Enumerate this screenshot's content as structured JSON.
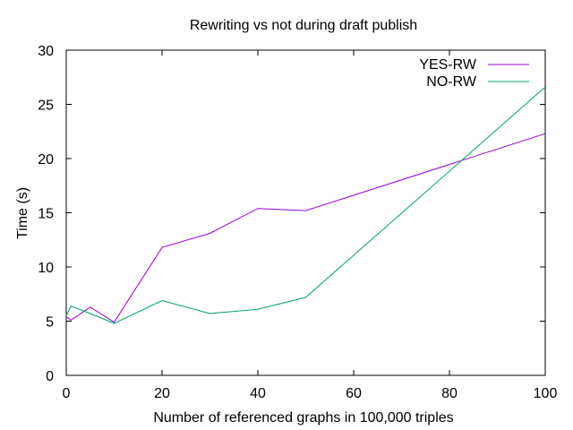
{
  "chart_data": {
    "type": "line",
    "title": "Rewriting vs not during draft publish",
    "xlabel": "Number of referenced graphs in 100,000 triples",
    "ylabel": "Time (s)",
    "xlim": [
      0,
      100
    ],
    "ylim": [
      0,
      30
    ],
    "xticks": [
      0,
      20,
      40,
      60,
      80,
      100
    ],
    "yticks": [
      0,
      5,
      10,
      15,
      20,
      25,
      30
    ],
    "grid": false,
    "legend_position": "top-right",
    "series": [
      {
        "name": "YES-RW",
        "color": "#9400d3",
        "x": [
          0,
          1,
          5,
          10,
          20,
          30,
          40,
          50,
          100
        ],
        "y": [
          5.4,
          5.1,
          6.3,
          4.9,
          11.8,
          13.1,
          15.4,
          15.2,
          22.3
        ]
      },
      {
        "name": "NO-RW",
        "color": "#009e73",
        "x": [
          0,
          1,
          5,
          10,
          20,
          30,
          40,
          50,
          100
        ],
        "y": [
          5.5,
          6.4,
          5.7,
          4.8,
          6.9,
          5.7,
          6.1,
          7.2,
          26.6
        ]
      }
    ]
  }
}
